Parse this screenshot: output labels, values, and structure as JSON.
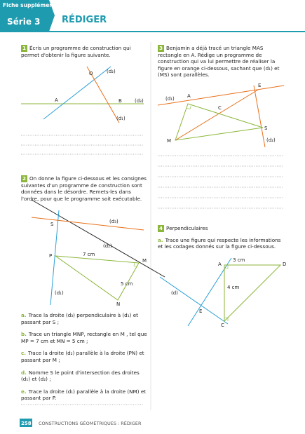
{
  "header": {
    "badge_line1": "Fiche supplémentaire",
    "badge_line2": "Série 3",
    "title": "RÉDIGER"
  },
  "exercises": [
    {
      "number": "1",
      "text": "Écris un programme de construction qui permet d'obtenir la figure suivante.",
      "figure_labels": [
        "O",
        "(d₂)",
        "A",
        "B",
        "(d₃)",
        "(d₁)"
      ]
    },
    {
      "number": "2",
      "text": "On donne la figure ci-dessous et les consignes suivantes d'un programme de construction sont données dans le désordre. Remets-les dans l'ordre, pour que le programme soit exécutable.",
      "figure_labels": [
        "S",
        "(d₃)",
        "(d₂)",
        "P",
        "7 cm",
        "M",
        "5 cm",
        "(d₁)",
        "N"
      ],
      "items": [
        {
          "letter": "a.",
          "text": "Trace la droite (d₃) perpendiculaire à (d₁) et passant par S ;"
        },
        {
          "letter": "b.",
          "text": "Trace un triangle MNP, rectangle en M , tel que MP = 7 cm et MN = 5 cm ;"
        },
        {
          "letter": "c.",
          "text": "Trace la droite (d₂) parallèle à la droite (PN) et passant par M ;"
        },
        {
          "letter": "d.",
          "text": "Nomme S le point d'intersection des droites (d₁) et (d₂) ;"
        },
        {
          "letter": "e.",
          "text": "Trace la droite (d₁) parallèle à la droite (NM) et passant par P."
        }
      ]
    },
    {
      "number": "3",
      "text": "Benjamin a déjà tracé un triangle MAS rectangle en A. Rédige un programme de construction qui va lui permettre de réaliser la figure en orange ci-dessous, sachant que (d₁) et (MS) sont parallèles.",
      "figure_labels": [
        "E",
        "(d₁)",
        "A",
        "C",
        "S",
        "M",
        "(d₂)"
      ]
    },
    {
      "number": "4",
      "title": "Perpendiculaires",
      "items": [
        {
          "letter": "a.",
          "text": "Trace une figure qui respecte les informations et les codages donnés sur la figure ci-dessous."
        }
      ],
      "figure_labels": [
        "A",
        "3 cm",
        "D",
        "(d)",
        "4 cm",
        "E",
        "C"
      ]
    }
  ],
  "footer": {
    "page": "258",
    "text": "CONSTRUCTIONS GÉOMÉTRIQUES : RÉDIGER"
  }
}
